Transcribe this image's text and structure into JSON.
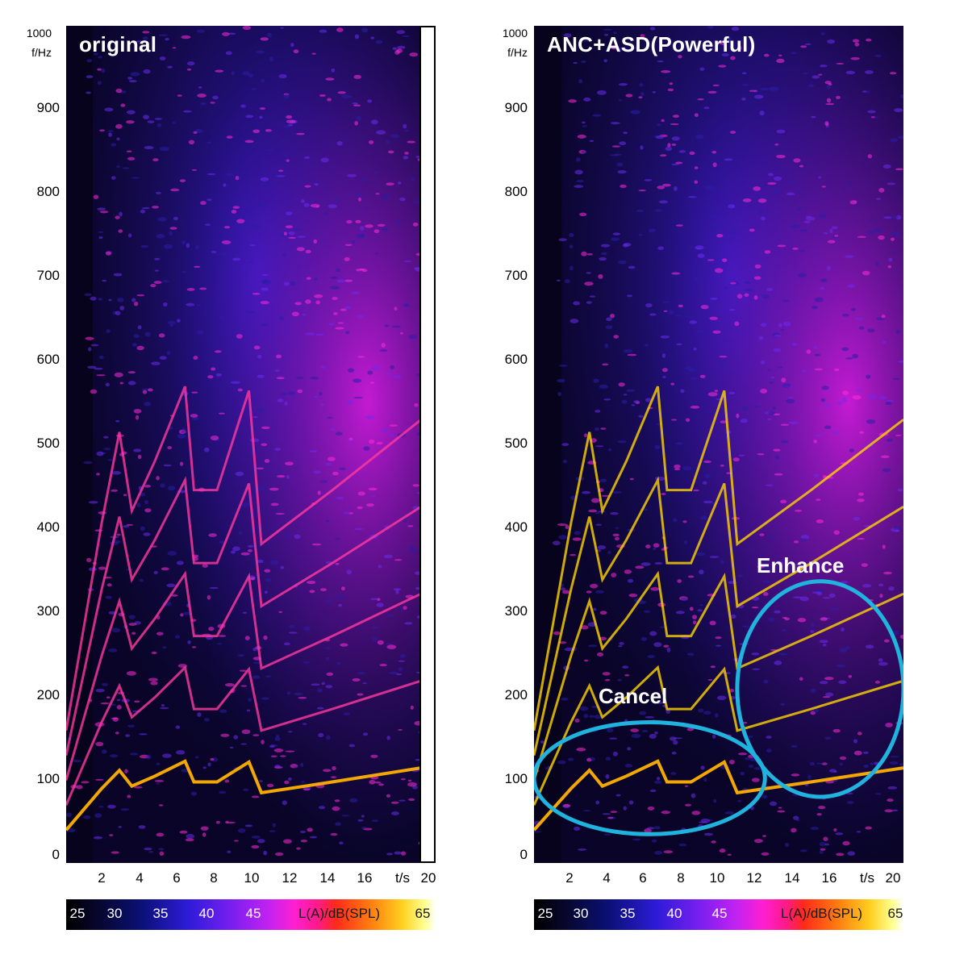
{
  "chart_data": [
    {
      "type": "heatmap",
      "title": "original",
      "ylabel": "f/Hz",
      "xlabel": "t/s",
      "x_ticks": [
        "2",
        "4",
        "6",
        "8",
        "10",
        "12",
        "14",
        "16",
        "20"
      ],
      "y_ticks": [
        "1000",
        "900",
        "800",
        "700",
        "600",
        "500",
        "400",
        "300",
        "200",
        "100",
        "0"
      ],
      "xlim": [
        0,
        20
      ],
      "ylim": [
        0,
        1000
      ],
      "colorbar": {
        "ticks": [
          "25",
          "30",
          "35",
          "40",
          "45"
        ],
        "label": "L(A)/dB(SPL)",
        "max": "65",
        "range": [
          25,
          65
        ]
      },
      "harmonics_fundamental": [
        [
          0,
          30
        ],
        [
          1,
          55
        ],
        [
          2,
          80
        ],
        [
          3,
          102
        ],
        [
          3.7,
          83
        ],
        [
          5,
          95
        ],
        [
          6.7,
          113
        ],
        [
          7.2,
          88
        ],
        [
          8.5,
          88
        ],
        [
          10.3,
          112
        ],
        [
          11,
          75
        ],
        [
          15,
          88
        ],
        [
          20,
          105
        ]
      ]
    },
    {
      "type": "heatmap",
      "title": "ANC+ASD(Powerful)",
      "ylabel": "f/Hz",
      "xlabel": "t/s",
      "x_ticks": [
        "2",
        "4",
        "6",
        "8",
        "10",
        "12",
        "14",
        "16",
        "20"
      ],
      "y_ticks": [
        "1000",
        "900",
        "800",
        "700",
        "600",
        "500",
        "400",
        "300",
        "200",
        "100",
        "0"
      ],
      "xlim": [
        0,
        20
      ],
      "ylim": [
        0,
        1000
      ],
      "colorbar": {
        "ticks": [
          "25",
          "30",
          "35",
          "40",
          "45"
        ],
        "label": "L(A)/dB(SPL)",
        "max": "65",
        "range": [
          25,
          65
        ]
      },
      "annotations": [
        {
          "text": "Cancel",
          "region_t": [
            0,
            12.5
          ],
          "region_f": [
            25,
            160
          ]
        },
        {
          "text": "Enhance",
          "region_t": [
            11,
            20
          ],
          "region_f": [
            70,
            330
          ]
        }
      ],
      "harmonics_fundamental": [
        [
          0,
          30
        ],
        [
          1,
          55
        ],
        [
          2,
          80
        ],
        [
          3,
          102
        ],
        [
          3.7,
          83
        ],
        [
          5,
          95
        ],
        [
          6.7,
          113
        ],
        [
          7.2,
          88
        ],
        [
          8.5,
          88
        ],
        [
          10.3,
          112
        ],
        [
          11,
          75
        ],
        [
          15,
          88
        ],
        [
          20,
          105
        ]
      ]
    }
  ],
  "colors": {
    "background": "#07031c",
    "annotation_ring": "#1fb3de",
    "text": "#000000"
  }
}
